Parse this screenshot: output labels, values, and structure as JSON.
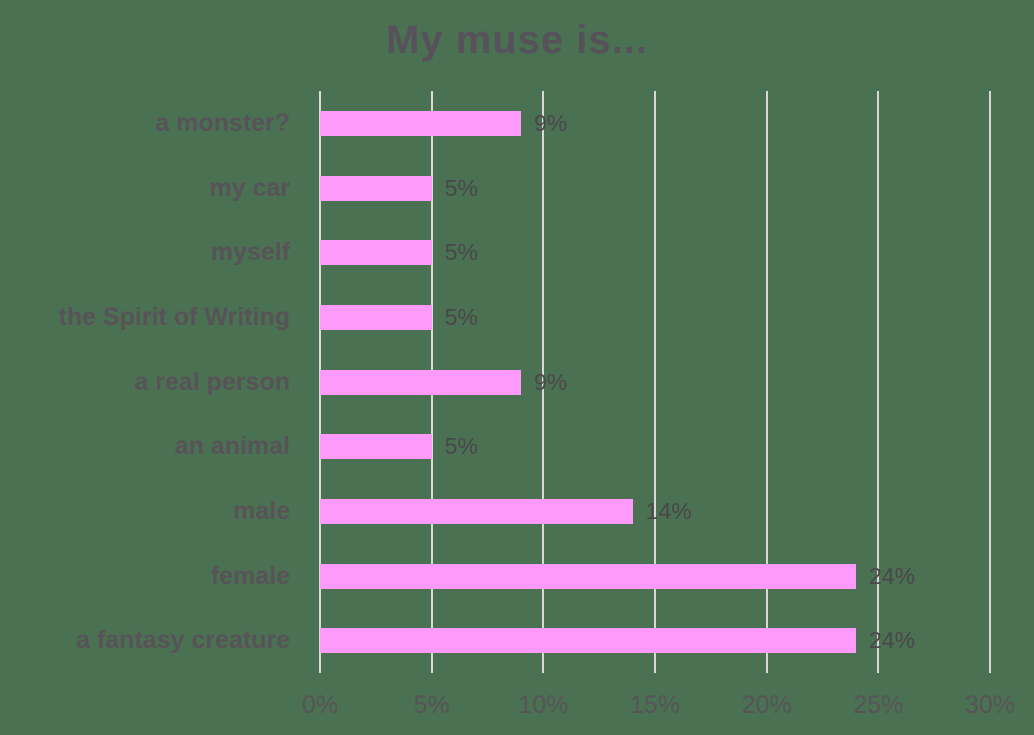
{
  "title": "My muse is...",
  "chart_data": {
    "type": "bar",
    "orientation": "horizontal",
    "title": "My muse is...",
    "categories": [
      "a monster?",
      "my car",
      "myself",
      "the Spirit of Writing",
      "a real person",
      "an animal",
      "male",
      "female",
      "a fantasy creature"
    ],
    "values": [
      9,
      5,
      5,
      5,
      9,
      5,
      14,
      24,
      24
    ],
    "value_labels": [
      "9%",
      "5%",
      "5%",
      "5%",
      "9%",
      "5%",
      "14%",
      "24%",
      "24%"
    ],
    "x_ticks": [
      "0%",
      "5%",
      "10%",
      "15%",
      "20%",
      "25%",
      "30%"
    ],
    "x_tick_values": [
      0,
      5,
      10,
      15,
      20,
      25,
      30
    ],
    "xlim": [
      0,
      30
    ],
    "xlabel": "",
    "ylabel": "",
    "grid": "vertical-only",
    "legend": "none",
    "colors": {
      "background": "#4a7151",
      "bar": "#ff9afb",
      "gridline": "#d9d9d9",
      "title_text": "#56515a",
      "category_text": "#585259",
      "value_text": "#4b464c",
      "tick_text": "#585259"
    }
  }
}
